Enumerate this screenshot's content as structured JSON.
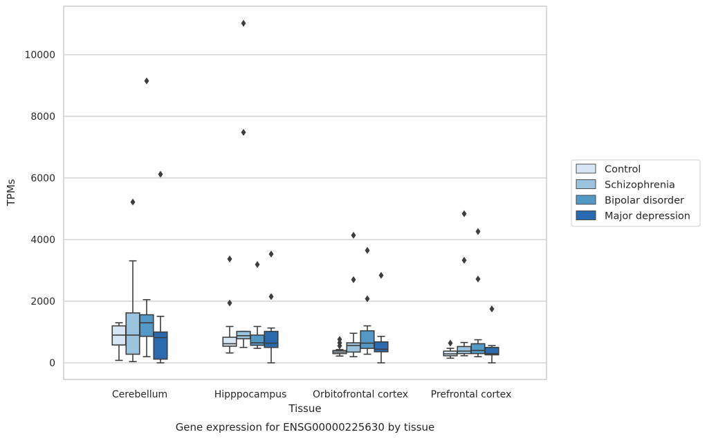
{
  "chart_data": {
    "type": "boxplot",
    "title": "Gene expression for ENSG00000225630 by tissue",
    "xlabel": "Tissue",
    "ylabel": "TPMs",
    "ylim": [
      -500,
      11550
    ],
    "yticks": [
      0,
      2000,
      4000,
      6000,
      8000,
      10000
    ],
    "grid": true,
    "legend_position": "right",
    "categories": [
      "Cerebellum",
      "Hipppocampus",
      "Orbitofrontal cortex",
      "Prefrontal cortex"
    ],
    "series": [
      {
        "name": "Control",
        "color": "#d8e6f3",
        "boxes": [
          {
            "whislo": 80,
            "q1": 580,
            "med": 900,
            "q3": 1200,
            "whishi": 1300,
            "fliers": []
          },
          {
            "whislo": 320,
            "q1": 540,
            "med": 620,
            "q3": 830,
            "whishi": 1180,
            "fliers": [
              1940,
              3370
            ]
          },
          {
            "whislo": 220,
            "q1": 300,
            "med": 350,
            "q3": 400,
            "whishi": 430,
            "fliers": [
              550,
              650,
              760
            ]
          },
          {
            "whislo": 150,
            "q1": 230,
            "med": 290,
            "q3": 380,
            "whishi": 470,
            "fliers": [
              640
            ]
          }
        ]
      },
      {
        "name": "Schizophrenia",
        "color": "#9ac4dd",
        "boxes": [
          {
            "whislo": 40,
            "q1": 280,
            "med": 900,
            "q3": 1620,
            "whishi": 3310,
            "fliers": [
              5220
            ]
          },
          {
            "whislo": 500,
            "q1": 780,
            "med": 880,
            "q3": 1020,
            "whishi": 1020,
            "fliers": [
              11020,
              7480
            ]
          },
          {
            "whislo": 200,
            "q1": 350,
            "med": 560,
            "q3": 650,
            "whishi": 960,
            "fliers": [
              2700,
              4140
            ]
          },
          {
            "whislo": 230,
            "q1": 300,
            "med": 380,
            "q3": 530,
            "whishi": 660,
            "fliers": [
              3330,
              4840
            ]
          }
        ]
      },
      {
        "name": "Bipolar disorder",
        "color": "#5399c6",
        "boxes": [
          {
            "whislo": 200,
            "q1": 860,
            "med": 1300,
            "q3": 1560,
            "whishi": 2050,
            "fliers": [
              9150
            ]
          },
          {
            "whislo": 470,
            "q1": 570,
            "med": 650,
            "q3": 900,
            "whishi": 1180,
            "fliers": [
              3190
            ]
          },
          {
            "whislo": 280,
            "q1": 470,
            "med": 640,
            "q3": 1040,
            "whishi": 1200,
            "fliers": [
              2080,
              3650
            ]
          },
          {
            "whislo": 200,
            "q1": 300,
            "med": 400,
            "q3": 620,
            "whishi": 750,
            "fliers": [
              2720,
              4260
            ]
          }
        ]
      },
      {
        "name": "Major depression",
        "color": "#2a6ab0",
        "boxes": [
          {
            "whislo": 0,
            "q1": 120,
            "med": 820,
            "q3": 1000,
            "whishi": 1510,
            "fliers": [
              6120
            ]
          },
          {
            "whislo": 0,
            "q1": 500,
            "med": 640,
            "q3": 1020,
            "whishi": 1130,
            "fliers": [
              2150,
              3530
            ]
          },
          {
            "whislo": 0,
            "q1": 360,
            "med": 440,
            "q3": 680,
            "whishi": 860,
            "fliers": [
              2840
            ]
          },
          {
            "whislo": 0,
            "q1": 260,
            "med": 300,
            "q3": 500,
            "whishi": 560,
            "fliers": [
              1750
            ]
          }
        ]
      }
    ]
  }
}
